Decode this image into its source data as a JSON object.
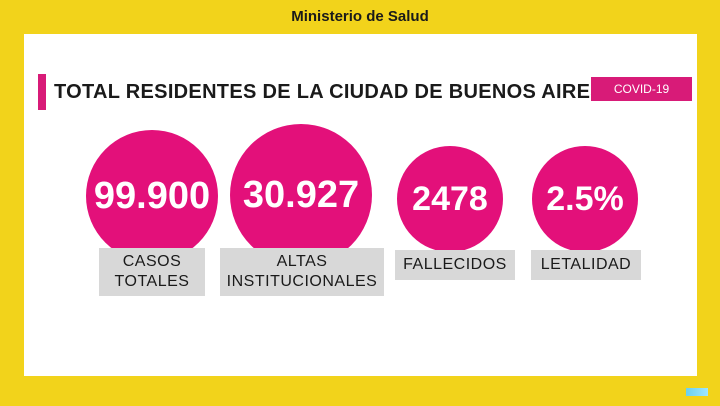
{
  "header": {
    "title": "Ministerio de Salud"
  },
  "panel": {
    "title": "TOTAL RESIDENTES DE LA CIUDAD DE BUENOS AIRES",
    "badge": "COVID-19"
  },
  "stats": [
    {
      "value": "99.900",
      "label_line1": "CASOS",
      "label_line2": "TOTALES"
    },
    {
      "value": "30.927",
      "label_line1": "ALTAS",
      "label_line2": "INSTITUCIONALES"
    },
    {
      "value": "2478",
      "label_line1": "FALLECIDOS"
    },
    {
      "value": "2.5%",
      "label_line1": "LETALIDAD"
    }
  ],
  "colors": {
    "background": "#f2d31b",
    "accent": "#e3107a",
    "label_bg": "#d8d8d8"
  }
}
